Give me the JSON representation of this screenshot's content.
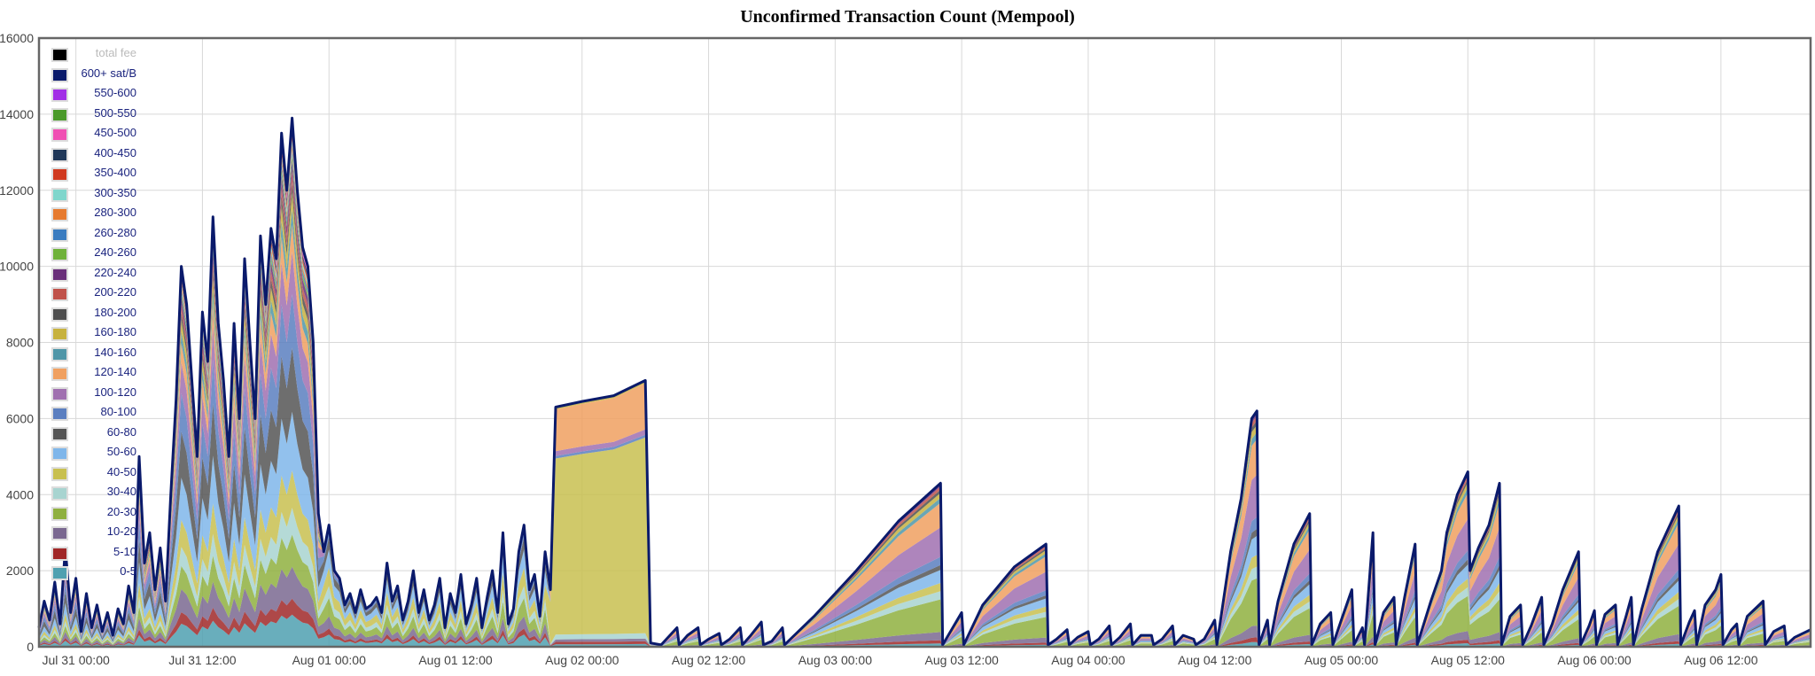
{
  "chart_data": {
    "type": "area",
    "title": "Unconfirmed Transaction Count (Mempool)",
    "stacked": true,
    "ylim": [
      0,
      16000
    ],
    "yticks": [
      "0",
      "2000",
      "4000",
      "6000",
      "8000",
      "10000",
      "12000",
      "14000",
      "16000"
    ],
    "x_tick_labels": [
      "Jul 31 00:00",
      "Jul 31 12:00",
      "Aug 01 00:00",
      "Aug 01 12:00",
      "Aug 02 00:00",
      "Aug 02 12:00",
      "Aug 03 00:00",
      "Aug 03 12:00",
      "Aug 04 00:00",
      "Aug 04 12:00",
      "Aug 05 00:00",
      "Aug 05 12:00",
      "Aug 06 00:00",
      "Aug 06 12:00"
    ],
    "x_unit": "hours since Jul 31 00:00",
    "xlim": [
      -3.5,
      164.5
    ],
    "grid": true,
    "legend_position": "top-left",
    "legend": [
      {
        "label": "total fee",
        "color": "#000000",
        "disabled": true
      },
      {
        "label": "600+ sat/B",
        "color": "#0a1a6b"
      },
      {
        "label": "550-600",
        "color": "#a22ee6"
      },
      {
        "label": "500-550",
        "color": "#4a9a2a"
      },
      {
        "label": "450-500",
        "color": "#f04fb3"
      },
      {
        "label": "400-450",
        "color": "#203859"
      },
      {
        "label": "350-400",
        "color": "#d0391f"
      },
      {
        "label": "300-350",
        "color": "#7fd6cc"
      },
      {
        "label": "280-300",
        "color": "#e67a2e"
      },
      {
        "label": "260-280",
        "color": "#3a7cc0"
      },
      {
        "label": "240-260",
        "color": "#6fb23a"
      },
      {
        "label": "220-240",
        "color": "#6a2f7a"
      },
      {
        "label": "200-220",
        "color": "#c0524a"
      },
      {
        "label": "180-200",
        "color": "#4e4e4e"
      },
      {
        "label": "160-180",
        "color": "#c7b23e"
      },
      {
        "label": "140-160",
        "color": "#4f96a8"
      },
      {
        "label": "120-140",
        "color": "#f0a060"
      },
      {
        "label": "100-120",
        "color": "#a070b0"
      },
      {
        "label": "80-100",
        "color": "#5b7fc0"
      },
      {
        "label": "60-80",
        "color": "#555555"
      },
      {
        "label": "50-60",
        "color": "#7fb6ea"
      },
      {
        "label": "40-50",
        "color": "#c8c050"
      },
      {
        "label": "30-40",
        "color": "#a8d4d0"
      },
      {
        "label": "20-30",
        "color": "#8fb040"
      },
      {
        "label": "10-20",
        "color": "#7a6890"
      },
      {
        "label": "5-10",
        "color": "#a02828"
      },
      {
        "label": "0-5",
        "color": "#4fa0b0"
      }
    ],
    "total_series": {
      "name": "600+ sat/B",
      "points": [
        [
          -3.5,
          500
        ],
        [
          -3,
          1200
        ],
        [
          -2.5,
          700
        ],
        [
          -2,
          1700
        ],
        [
          -1.5,
          600
        ],
        [
          -1,
          2600
        ],
        [
          -0.5,
          900
        ],
        [
          0,
          1800
        ],
        [
          0.5,
          400
        ],
        [
          1,
          1400
        ],
        [
          1.5,
          500
        ],
        [
          2,
          1100
        ],
        [
          2.5,
          400
        ],
        [
          3,
          900
        ],
        [
          3.5,
          300
        ],
        [
          4,
          1000
        ],
        [
          4.5,
          600
        ],
        [
          5,
          1600
        ],
        [
          5.5,
          900
        ],
        [
          6,
          5000
        ],
        [
          6.5,
          2200
        ],
        [
          7,
          3000
        ],
        [
          7.5,
          1500
        ],
        [
          8,
          2600
        ],
        [
          8.5,
          1200
        ],
        [
          9,
          4000
        ],
        [
          9.5,
          6500
        ],
        [
          10,
          10000
        ],
        [
          10.5,
          9000
        ],
        [
          11,
          7000
        ],
        [
          11.5,
          5000
        ],
        [
          12,
          8800
        ],
        [
          12.5,
          7500
        ],
        [
          13,
          11300
        ],
        [
          13.5,
          8500
        ],
        [
          14,
          7000
        ],
        [
          14.5,
          5000
        ],
        [
          15,
          8500
        ],
        [
          15.5,
          6000
        ],
        [
          16,
          10200
        ],
        [
          16.5,
          8000
        ],
        [
          17,
          6000
        ],
        [
          17.5,
          10800
        ],
        [
          18,
          9000
        ],
        [
          18.5,
          11000
        ],
        [
          19,
          10200
        ],
        [
          19.5,
          13500
        ],
        [
          20,
          12000
        ],
        [
          20.5,
          13900
        ],
        [
          21,
          12000
        ],
        [
          21.5,
          10500
        ],
        [
          22,
          10000
        ],
        [
          22.5,
          8000
        ],
        [
          23,
          3500
        ],
        [
          23.5,
          2500
        ],
        [
          24,
          3200
        ],
        [
          24.5,
          2000
        ],
        [
          25,
          1800
        ],
        [
          25.5,
          1100
        ],
        [
          26,
          1400
        ],
        [
          26.5,
          900
        ],
        [
          27,
          1500
        ],
        [
          27.5,
          1000
        ],
        [
          28,
          1100
        ],
        [
          28.5,
          1300
        ],
        [
          29,
          900
        ],
        [
          29.5,
          2200
        ],
        [
          30,
          1200
        ],
        [
          30.5,
          1600
        ],
        [
          31,
          700
        ],
        [
          31.5,
          1200
        ],
        [
          32,
          2000
        ],
        [
          32.5,
          900
        ],
        [
          33,
          1500
        ],
        [
          33.5,
          700
        ],
        [
          34,
          1100
        ],
        [
          34.5,
          1800
        ],
        [
          35,
          500
        ],
        [
          35.5,
          1400
        ],
        [
          36,
          900
        ],
        [
          36.5,
          1900
        ],
        [
          37,
          600
        ],
        [
          37.5,
          1100
        ],
        [
          38,
          1800
        ],
        [
          38.5,
          500
        ],
        [
          39,
          1300
        ],
        [
          39.5,
          2000
        ],
        [
          40,
          900
        ],
        [
          40.5,
          3000
        ],
        [
          41,
          600
        ],
        [
          41.5,
          1000
        ],
        [
          42,
          2500
        ],
        [
          42.5,
          3200
        ],
        [
          43,
          1500
        ],
        [
          43.5,
          1900
        ],
        [
          44,
          800
        ],
        [
          44.5,
          2500
        ],
        [
          45,
          1500
        ],
        [
          45.5,
          6300
        ],
        [
          48,
          6450
        ],
        [
          51,
          6600
        ],
        [
          54,
          7000
        ],
        [
          54.5,
          100
        ],
        [
          55.5,
          50
        ],
        [
          56,
          200
        ],
        [
          57,
          500
        ],
        [
          57.2,
          50
        ],
        [
          58,
          300
        ],
        [
          59,
          500
        ],
        [
          59.2,
          50
        ],
        [
          60,
          200
        ],
        [
          61,
          350
        ],
        [
          61.2,
          50
        ],
        [
          62,
          200
        ],
        [
          63,
          500
        ],
        [
          63.2,
          50
        ],
        [
          64,
          300
        ],
        [
          65,
          650
        ],
        [
          65.2,
          50
        ],
        [
          66,
          150
        ],
        [
          67,
          500
        ],
        [
          67.2,
          50
        ],
        [
          70,
          800
        ],
        [
          74,
          2000
        ],
        [
          78,
          3300
        ],
        [
          82,
          4300
        ],
        [
          82.2,
          50
        ],
        [
          84,
          900
        ],
        [
          84.2,
          50
        ],
        [
          86,
          1100
        ],
        [
          89,
          2100
        ],
        [
          92,
          2700
        ],
        [
          92.2,
          50
        ],
        [
          93,
          200
        ],
        [
          94,
          450
        ],
        [
          94.2,
          50
        ],
        [
          95,
          250
        ],
        [
          96,
          400
        ],
        [
          96.2,
          50
        ],
        [
          97,
          200
        ],
        [
          98,
          550
        ],
        [
          98.2,
          50
        ],
        [
          99,
          250
        ],
        [
          100,
          600
        ],
        [
          100.2,
          50
        ],
        [
          101,
          300
        ],
        [
          102,
          300
        ],
        [
          102.2,
          50
        ],
        [
          103,
          200
        ],
        [
          104,
          550
        ],
        [
          104.2,
          50
        ],
        [
          105,
          300
        ],
        [
          106,
          200
        ],
        [
          106.2,
          50
        ],
        [
          107,
          200
        ],
        [
          108,
          700
        ],
        [
          108.2,
          50
        ],
        [
          109.5,
          2500
        ],
        [
          110.5,
          3900
        ],
        [
          111.5,
          6000
        ],
        [
          112,
          6200
        ],
        [
          112.2,
          50
        ],
        [
          113,
          700
        ],
        [
          113.2,
          50
        ],
        [
          114,
          1200
        ],
        [
          115.5,
          2700
        ],
        [
          117,
          3500
        ],
        [
          117.2,
          50
        ],
        [
          118,
          600
        ],
        [
          119,
          900
        ],
        [
          119.2,
          50
        ],
        [
          120,
          700
        ],
        [
          121,
          1500
        ],
        [
          121.2,
          50
        ],
        [
          122,
          500
        ],
        [
          122.2,
          50
        ],
        [
          123,
          3000
        ],
        [
          123.2,
          50
        ],
        [
          124,
          900
        ],
        [
          125,
          1300
        ],
        [
          125.2,
          50
        ],
        [
          126,
          1300
        ],
        [
          127,
          2700
        ],
        [
          127.2,
          50
        ],
        [
          128.5,
          1200
        ],
        [
          129.5,
          2000
        ],
        [
          130,
          3000
        ],
        [
          131,
          4000
        ],
        [
          132,
          4600
        ],
        [
          132.2,
          2000
        ],
        [
          133,
          2600
        ],
        [
          134,
          3200
        ],
        [
          135,
          4300
        ],
        [
          135.2,
          50
        ],
        [
          136,
          800
        ],
        [
          137,
          1100
        ],
        [
          137.2,
          50
        ],
        [
          138,
          550
        ],
        [
          139,
          1300
        ],
        [
          139.2,
          50
        ],
        [
          140,
          600
        ],
        [
          141,
          1500
        ],
        [
          142.5,
          2500
        ],
        [
          142.7,
          50
        ],
        [
          143.5,
          550
        ],
        [
          144,
          950
        ],
        [
          144.2,
          50
        ],
        [
          145,
          850
        ],
        [
          146,
          1100
        ],
        [
          146.2,
          50
        ],
        [
          147,
          800
        ],
        [
          147.5,
          1300
        ],
        [
          147.7,
          50
        ],
        [
          148.5,
          1000
        ],
        [
          150,
          2500
        ],
        [
          152,
          3700
        ],
        [
          152.2,
          50
        ],
        [
          153,
          650
        ],
        [
          153.5,
          950
        ],
        [
          153.7,
          50
        ],
        [
          154.5,
          1100
        ],
        [
          155.5,
          1500
        ],
        [
          156,
          1900
        ],
        [
          156.2,
          50
        ],
        [
          157,
          450
        ],
        [
          157.5,
          600
        ],
        [
          157.7,
          50
        ],
        [
          158.5,
          800
        ],
        [
          160,
          1200
        ],
        [
          160.2,
          50
        ],
        [
          161,
          400
        ],
        [
          162,
          550
        ],
        [
          162.2,
          50
        ],
        [
          163,
          250
        ],
        [
          164.5,
          450
        ]
      ]
    }
  }
}
